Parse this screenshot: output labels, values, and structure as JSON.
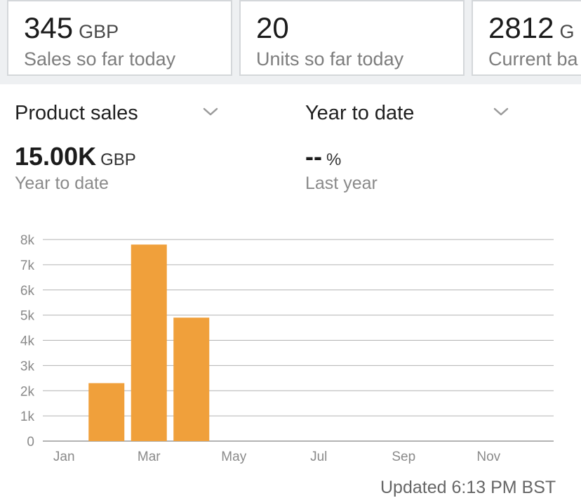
{
  "stats": [
    {
      "value": "345",
      "unit": "GBP",
      "caption": "Sales so far today"
    },
    {
      "value": "20",
      "unit": "",
      "caption": "Units so far today"
    },
    {
      "value": "2812",
      "unit": "G",
      "caption": "Current ba"
    }
  ],
  "selectors": {
    "metric": "Product sales",
    "period": "Year to date"
  },
  "summary": {
    "primary": {
      "value": "15.00K",
      "unit": "GBP",
      "caption": "Year to date"
    },
    "comparison": {
      "value": "--",
      "unit": "%",
      "caption": "Last year"
    }
  },
  "chart_data": {
    "type": "bar",
    "categories": [
      "Jan",
      "Feb",
      "Mar",
      "Apr",
      "May",
      "Jun",
      "Jul",
      "Aug",
      "Sep",
      "Oct",
      "Nov",
      "Dec"
    ],
    "values": [
      0,
      2300,
      7800,
      4900,
      0,
      0,
      0,
      0,
      0,
      0,
      0,
      0
    ],
    "x_tick_labels": [
      "Jan",
      "Mar",
      "May",
      "Jul",
      "Sep",
      "Nov"
    ],
    "y_tick_labels": [
      "0",
      "1k",
      "2k",
      "3k",
      "4k",
      "5k",
      "6k",
      "7k",
      "8k"
    ],
    "ylim": [
      0,
      8000
    ],
    "grid": true,
    "bar_color": "#f0a03b"
  },
  "footer": {
    "updated": "Updated 6:13 PM BST"
  }
}
